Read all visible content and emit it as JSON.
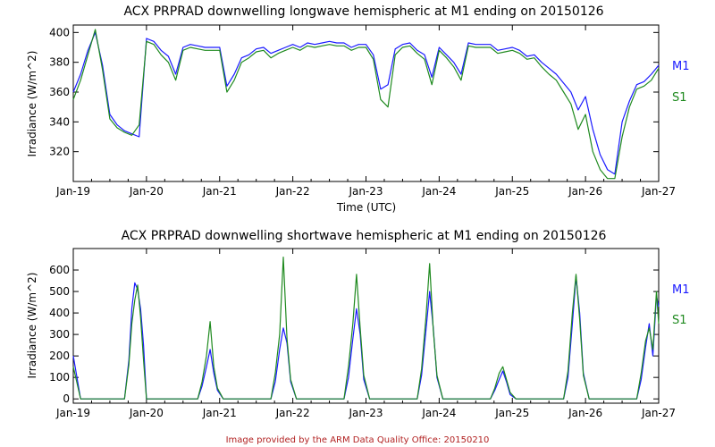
{
  "footer": "Image provided by the ARM Data Quality Office: 20150210",
  "colors": {
    "M1": "#1a1aff",
    "S1": "#1f8a1f",
    "axis": "#000000",
    "footer": "#b22222"
  },
  "chart_data": [
    {
      "type": "line",
      "title": "ACX PRPRAD downwelling longwave hemispheric at M1 ending on 20150126",
      "xlabel": "Time (UTC)",
      "ylabel": "Irradiance (W/m^2)",
      "x_ticks": [
        "Jan-19",
        "Jan-20",
        "Jan-21",
        "Jan-22",
        "Jan-23",
        "Jan-24",
        "Jan-25",
        "Jan-26",
        "Jan-27"
      ],
      "xlim_days": [
        19,
        27
      ],
      "ylim": [
        300,
        405
      ],
      "y_ticks": [
        320,
        340,
        360,
        380,
        400
      ],
      "legend": "right",
      "series": [
        {
          "name": "M1",
          "color": "#1a1aff",
          "x": [
            19.0,
            19.1,
            19.2,
            19.3,
            19.4,
            19.5,
            19.6,
            19.7,
            19.8,
            19.9,
            20.0,
            20.1,
            20.2,
            20.3,
            20.4,
            20.5,
            20.6,
            20.7,
            20.8,
            20.9,
            21.0,
            21.1,
            21.2,
            21.3,
            21.4,
            21.5,
            21.6,
            21.7,
            21.8,
            21.9,
            22.0,
            22.1,
            22.2,
            22.3,
            22.4,
            22.5,
            22.6,
            22.7,
            22.8,
            22.9,
            23.0,
            23.1,
            23.2,
            23.3,
            23.4,
            23.5,
            23.6,
            23.7,
            23.8,
            23.9,
            24.0,
            24.1,
            24.2,
            24.3,
            24.4,
            24.5,
            24.6,
            24.7,
            24.8,
            24.9,
            25.0,
            25.1,
            25.2,
            25.3,
            25.4,
            25.5,
            25.6,
            25.7,
            25.8,
            25.9,
            26.0,
            26.1,
            26.2,
            26.3,
            26.4,
            26.5,
            26.6,
            26.7,
            26.8,
            26.9,
            27.0
          ],
          "y": [
            360,
            372,
            388,
            400,
            378,
            345,
            338,
            334,
            332,
            330,
            396,
            394,
            388,
            384,
            372,
            390,
            392,
            391,
            390,
            390,
            390,
            364,
            372,
            383,
            385,
            389,
            390,
            386,
            388,
            390,
            392,
            390,
            393,
            392,
            393,
            394,
            393,
            393,
            390,
            392,
            392,
            385,
            362,
            365,
            389,
            392,
            393,
            388,
            385,
            370,
            390,
            385,
            380,
            372,
            393,
            392,
            392,
            392,
            388,
            389,
            390,
            388,
            384,
            385,
            380,
            376,
            372,
            366,
            360,
            348,
            357,
            335,
            318,
            308,
            305,
            340,
            354,
            365,
            367,
            372,
            378
          ]
        },
        {
          "name": "S1",
          "color": "#1f8a1f",
          "x": [
            19.0,
            19.1,
            19.2,
            19.3,
            19.4,
            19.5,
            19.6,
            19.7,
            19.8,
            19.9,
            20.0,
            20.1,
            20.2,
            20.3,
            20.4,
            20.5,
            20.6,
            20.7,
            20.8,
            20.9,
            21.0,
            21.1,
            21.2,
            21.3,
            21.4,
            21.5,
            21.6,
            21.7,
            21.8,
            21.9,
            22.0,
            22.1,
            22.2,
            22.3,
            22.4,
            22.5,
            22.6,
            22.7,
            22.8,
            22.9,
            23.0,
            23.1,
            23.2,
            23.3,
            23.4,
            23.5,
            23.6,
            23.7,
            23.8,
            23.9,
            24.0,
            24.1,
            24.2,
            24.3,
            24.4,
            24.5,
            24.6,
            24.7,
            24.8,
            24.9,
            25.0,
            25.1,
            25.2,
            25.3,
            25.4,
            25.5,
            25.6,
            25.7,
            25.8,
            25.9,
            26.0,
            26.1,
            26.2,
            26.3,
            26.4,
            26.5,
            26.6,
            26.7,
            26.8,
            26.9,
            27.0
          ],
          "y": [
            355,
            368,
            385,
            402,
            375,
            342,
            336,
            333,
            331,
            338,
            394,
            392,
            385,
            380,
            368,
            388,
            390,
            389,
            388,
            388,
            388,
            360,
            368,
            380,
            383,
            387,
            388,
            383,
            386,
            388,
            390,
            388,
            391,
            390,
            391,
            392,
            391,
            391,
            388,
            390,
            390,
            382,
            355,
            350,
            385,
            390,
            391,
            386,
            382,
            365,
            388,
            383,
            377,
            368,
            391,
            390,
            390,
            390,
            386,
            387,
            388,
            386,
            382,
            383,
            377,
            372,
            368,
            360,
            352,
            335,
            345,
            320,
            308,
            302,
            302,
            330,
            350,
            362,
            364,
            368,
            376
          ]
        }
      ]
    },
    {
      "type": "line",
      "title": "ACX PRPRAD downwelling shortwave hemispheric at M1 ending on 20150126",
      "xlabel": "",
      "ylabel": "Irradiance (W/m^2)",
      "x_ticks": [
        "Jan-19",
        "Jan-20",
        "Jan-21",
        "Jan-22",
        "Jan-23",
        "Jan-24",
        "Jan-25",
        "Jan-26",
        "Jan-27"
      ],
      "xlim_days": [
        19,
        27
      ],
      "ylim": [
        -20,
        700
      ],
      "y_ticks": [
        0,
        100,
        200,
        300,
        400,
        500,
        600
      ],
      "legend": "right",
      "series": [
        {
          "name": "M1",
          "color": "#1a1aff",
          "x": [
            19.0,
            19.1,
            19.2,
            19.3,
            19.4,
            19.5,
            19.6,
            19.7,
            19.76,
            19.8,
            19.84,
            19.88,
            19.92,
            19.96,
            20.0,
            20.1,
            20.2,
            20.5,
            20.6,
            20.7,
            20.76,
            20.82,
            20.87,
            20.92,
            20.97,
            21.05,
            21.5,
            21.6,
            21.7,
            21.76,
            21.82,
            21.87,
            21.92,
            21.97,
            22.05,
            22.5,
            22.6,
            22.7,
            22.76,
            22.82,
            22.87,
            22.92,
            22.97,
            23.05,
            23.5,
            23.6,
            23.7,
            23.76,
            23.82,
            23.87,
            23.92,
            23.97,
            24.05,
            24.5,
            24.6,
            24.7,
            24.76,
            24.82,
            24.87,
            24.92,
            24.97,
            25.05,
            25.5,
            25.6,
            25.7,
            25.76,
            25.82,
            25.87,
            25.92,
            25.97,
            26.05,
            26.5,
            26.6,
            26.7,
            26.76,
            26.82,
            26.87,
            26.92,
            26.97,
            27.0
          ],
          "y": [
            200,
            0,
            0,
            0,
            0,
            0,
            0,
            0,
            180,
            420,
            540,
            510,
            420,
            250,
            0,
            0,
            0,
            0,
            0,
            0,
            60,
            150,
            230,
            120,
            40,
            0,
            0,
            0,
            0,
            80,
            230,
            330,
            260,
            80,
            0,
            0,
            0,
            0,
            100,
            280,
            420,
            300,
            90,
            0,
            0,
            0,
            0,
            110,
            320,
            500,
            330,
            100,
            0,
            0,
            0,
            0,
            40,
            90,
            130,
            80,
            20,
            0,
            0,
            0,
            0,
            100,
            350,
            570,
            400,
            120,
            0,
            0,
            0,
            0,
            90,
            240,
            350,
            200,
            480,
            430
          ]
        },
        {
          "name": "S1",
          "color": "#1f8a1f",
          "x": [
            19.0,
            19.1,
            19.2,
            19.3,
            19.4,
            19.5,
            19.6,
            19.7,
            19.76,
            19.8,
            19.84,
            19.88,
            19.92,
            19.96,
            20.0,
            20.1,
            20.2,
            20.5,
            20.6,
            20.7,
            20.76,
            20.82,
            20.87,
            20.92,
            20.97,
            21.05,
            21.5,
            21.6,
            21.7,
            21.76,
            21.82,
            21.87,
            21.92,
            21.97,
            22.05,
            22.5,
            22.6,
            22.7,
            22.76,
            22.82,
            22.87,
            22.92,
            22.97,
            23.05,
            23.5,
            23.6,
            23.7,
            23.76,
            23.82,
            23.87,
            23.92,
            23.97,
            24.05,
            24.5,
            24.6,
            24.7,
            24.76,
            24.82,
            24.87,
            24.92,
            24.97,
            25.05,
            25.5,
            25.6,
            25.7,
            25.76,
            25.82,
            25.87,
            25.92,
            25.97,
            26.05,
            26.5,
            26.6,
            26.7,
            26.76,
            26.82,
            26.87,
            26.92,
            26.97,
            27.0
          ],
          "y": [
            150,
            0,
            0,
            0,
            0,
            0,
            0,
            0,
            160,
            350,
            460,
            530,
            380,
            180,
            0,
            0,
            0,
            0,
            0,
            0,
            80,
            200,
            360,
            150,
            50,
            0,
            0,
            0,
            0,
            120,
            300,
            660,
            280,
            90,
            0,
            0,
            0,
            0,
            150,
            350,
            580,
            330,
            110,
            0,
            0,
            0,
            0,
            140,
            380,
            630,
            320,
            110,
            0,
            0,
            0,
            0,
            50,
            120,
            150,
            90,
            30,
            0,
            0,
            0,
            0,
            130,
            400,
            580,
            370,
            110,
            0,
            0,
            0,
            0,
            120,
            270,
            330,
            230,
            500,
            350
          ]
        }
      ]
    }
  ]
}
